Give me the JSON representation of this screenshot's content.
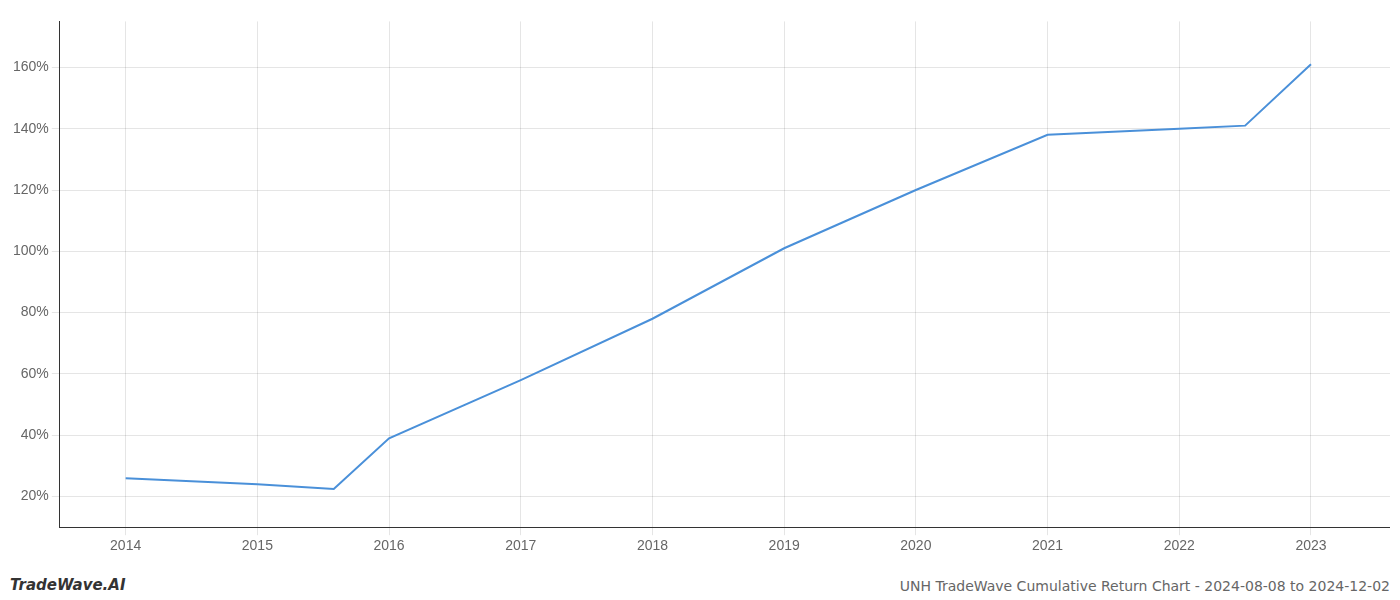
{
  "chart_data": {
    "type": "line",
    "title": "UNH TradeWave Cumulative Return Chart - 2024-08-08 to 2024-12-02",
    "annotations": [
      "TradeWave.AI"
    ],
    "x": [
      2014,
      2015,
      2015.58,
      2016,
      2017,
      2018,
      2019,
      2020,
      2021,
      2021.5,
      2022,
      2022.5,
      2023
    ],
    "values": [
      26,
      24,
      22.5,
      39,
      58,
      78,
      101,
      120,
      138,
      139,
      140,
      141,
      161
    ],
    "color": "#4a90d9",
    "xlim": [
      2013.5,
      2023.6
    ],
    "xticks": [
      2014,
      2015,
      2016,
      2017,
      2018,
      2019,
      2020,
      2021,
      2022,
      2023
    ],
    "ylim": [
      10,
      175
    ],
    "yticks": [
      {
        "value": 20,
        "label": "20%"
      },
      {
        "value": 40,
        "label": "40%"
      },
      {
        "value": 60,
        "label": "60%"
      },
      {
        "value": 80,
        "label": "80%"
      },
      {
        "value": 100,
        "label": "100%"
      },
      {
        "value": 120,
        "label": "120%"
      },
      {
        "value": 140,
        "label": "140%"
      },
      {
        "value": 160,
        "label": "160%"
      }
    ],
    "grid": true
  }
}
